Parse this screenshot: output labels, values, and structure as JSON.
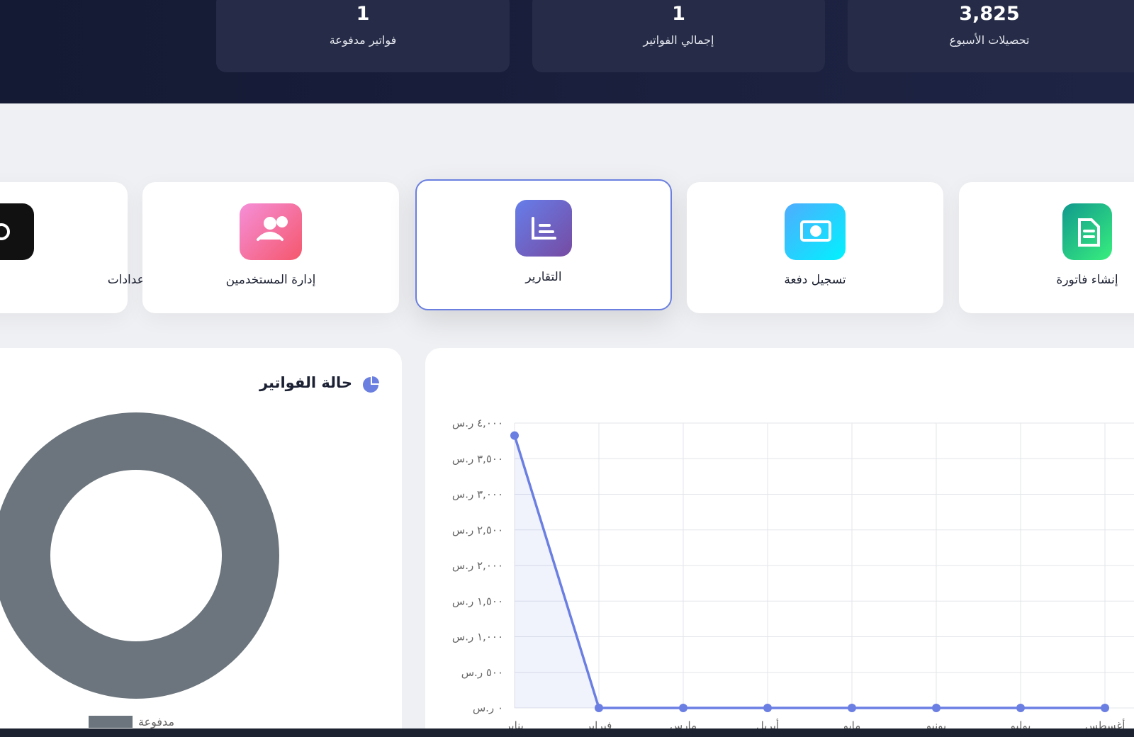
{
  "stats": [
    {
      "value": "1",
      "label": "فواتير مدفوعة"
    },
    {
      "value": "1",
      "label": "إجمالي الفواتير"
    },
    {
      "value": "3,825",
      "label": "تحصيلات الأسبوع"
    }
  ],
  "actions": [
    "الإعدادات",
    "إدارة المستخدمين",
    "التقارير",
    "تسجيل دفعة",
    "إنشاء فاتورة"
  ],
  "chart_data": [
    {
      "type": "donut",
      "title": "حالة الفواتير",
      "categories": [
        "مدفوعة"
      ],
      "values": [
        1
      ],
      "colors": [
        "#6c757d"
      ]
    },
    {
      "type": "line",
      "categories": [
        "يناير",
        "فبراير",
        "مارس",
        "أبريل",
        "مايو",
        "يونيو",
        "يوليو",
        "أغسطس"
      ],
      "values": [
        3825,
        0,
        0,
        0,
        0,
        0,
        0,
        0
      ],
      "color": "#6b7fe3",
      "ylim": [
        0,
        4000
      ],
      "yticks": [
        {
          "value": 0,
          "label": "٠ ر.س"
        },
        {
          "value": 500,
          "label": "٥٠٠ ر.س"
        },
        {
          "value": 1000,
          "label": "١,٠٠٠ ر.س"
        },
        {
          "value": 1500,
          "label": "١,٥٠٠ ر.س"
        },
        {
          "value": 2000,
          "label": "٢,٠٠٠ ر.س"
        },
        {
          "value": 2500,
          "label": "٢,٥٠٠ ر.س"
        },
        {
          "value": 3000,
          "label": "٣,٠٠٠ ر.س"
        },
        {
          "value": 3500,
          "label": "٣,٥٠٠ ر.س"
        },
        {
          "value": 4000,
          "label": "٤,٠٠٠ ر.س"
        }
      ],
      "grid": true
    }
  ]
}
